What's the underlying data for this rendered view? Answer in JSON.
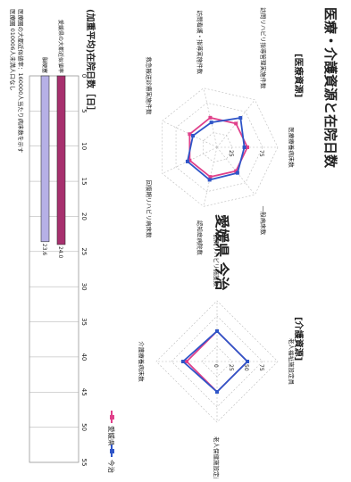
{
  "page": {
    "title": "医療・介護資源と在院日数",
    "region": "愛媛県 今治",
    "footnote_1": "医療圏の大都近似値率：160000人当たり病床数を示す",
    "footnote_2": "医療圏 010006人未満人口なし"
  },
  "legend": {
    "items": [
      {
        "label": "愛媛県",
        "color": "#e0408a"
      },
      {
        "label": "今治",
        "color": "#2f55c8"
      }
    ]
  },
  "colors": {
    "prefecture": "#e0408a",
    "region": "#2f55c8",
    "prefecture_bar_fill": "#a7306e",
    "region_bar_fill": "#b6b0e6"
  },
  "chart_data": [
    {
      "type": "radar",
      "title": "[医療資源]",
      "axis_labels": [
        "医療療養病床数",
        "一般病床数",
        "認知症病院数",
        "回復期リハビリ病床数",
        "救急搬送診療実施件数",
        "訪問看護・指導実施件数",
        "訪問リハビリ指導管理実施件数"
      ],
      "tick_labels": [
        "25",
        "75"
      ],
      "range": [
        0,
        100
      ],
      "series": [
        {
          "name": "愛媛県",
          "values": [
            50,
            50,
            50,
            50,
            50,
            50,
            50
          ]
        },
        {
          "name": "今治",
          "values": [
            45,
            54,
            55,
            54,
            44,
            42,
            62
          ]
        }
      ]
    },
    {
      "type": "radar",
      "title": "[介護資源]",
      "axis_labels": [
        "老人福祉施設定員",
        "老人保健施設定員",
        "介護療養病床数",
        "訪問リハビリ施設数"
      ],
      "tick_labels": [
        "0",
        "25",
        "50",
        "75"
      ],
      "range": [
        0,
        100
      ],
      "series": [
        {
          "name": "愛媛県",
          "values": [
            50,
            50,
            50,
            50
          ]
        },
        {
          "name": "今治",
          "values": [
            50,
            50,
            56,
            50
          ]
        }
      ]
    },
    {
      "type": "bar",
      "title": "(加重平均)在院日数［日］",
      "categories": [
        "愛媛県の大都近似値率",
        "脳硬塞"
      ],
      "values": [
        24.0,
        23.6
      ],
      "value_labels": [
        "24.0",
        "23.6"
      ],
      "xlim": [
        0,
        55
      ],
      "x_ticks": [
        "0",
        "5",
        "10",
        "15",
        "20",
        "25",
        "30",
        "35",
        "40",
        "45",
        "50",
        "55"
      ]
    }
  ]
}
